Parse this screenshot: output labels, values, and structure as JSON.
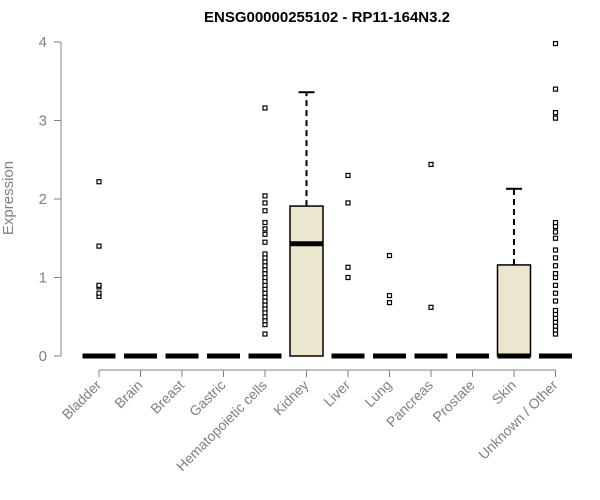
{
  "chart_data": {
    "type": "box",
    "title": "ENSG00000255102 - RP11-164N3.2",
    "xlabel": "",
    "ylabel": "Expression",
    "ylim": [
      0,
      4
    ],
    "yticks": [
      "0",
      "1",
      "2",
      "3",
      "4"
    ],
    "grid": false,
    "box_fill": "#ece6cc",
    "categories": [
      "Bladder",
      "Brain",
      "Breast",
      "Gastric",
      "Hematopoietic cells",
      "Kidney",
      "Liver",
      "Lung",
      "Pancreas",
      "Prostate",
      "Skin",
      "Unknown / Other"
    ],
    "boxes": [
      {
        "min": 0,
        "q1": 0,
        "median": 0,
        "q3": 0,
        "max": 0,
        "outliers": [
          0.76,
          0.8,
          0.88,
          0.9,
          1.4,
          2.22
        ]
      },
      {
        "min": 0,
        "q1": 0,
        "median": 0,
        "q3": 0,
        "max": 0,
        "outliers": []
      },
      {
        "min": 0,
        "q1": 0,
        "median": 0,
        "q3": 0,
        "max": 0,
        "outliers": []
      },
      {
        "min": 0,
        "q1": 0,
        "median": 0,
        "q3": 0,
        "max": 0,
        "outliers": []
      },
      {
        "min": 0,
        "q1": 0,
        "median": 0,
        "q3": 0,
        "max": 0,
        "outliers": [
          0.28,
          0.4,
          0.45,
          0.5,
          0.55,
          0.6,
          0.65,
          0.7,
          0.75,
          0.8,
          0.85,
          0.9,
          0.95,
          1.0,
          1.05,
          1.1,
          1.15,
          1.2,
          1.25,
          1.3,
          1.45,
          1.55,
          1.62,
          1.7,
          1.85,
          1.95,
          2.04,
          3.16
        ]
      },
      {
        "min": 0,
        "q1": 0,
        "median": 1.43,
        "q3": 1.91,
        "max": 3.36,
        "outliers": []
      },
      {
        "min": 0,
        "q1": 0,
        "median": 0,
        "q3": 0,
        "max": 0,
        "outliers": [
          1.0,
          1.13,
          1.95,
          2.3
        ]
      },
      {
        "min": 0,
        "q1": 0,
        "median": 0,
        "q3": 0,
        "max": 0,
        "outliers": [
          0.68,
          0.77,
          1.28
        ]
      },
      {
        "min": 0,
        "q1": 0,
        "median": 0,
        "q3": 0,
        "max": 0,
        "outliers": [
          0.62,
          2.44
        ]
      },
      {
        "min": 0,
        "q1": 0,
        "median": 0,
        "q3": 0,
        "max": 0,
        "outliers": []
      },
      {
        "min": 0,
        "q1": 0,
        "median": 0,
        "q3": 1.16,
        "max": 2.13,
        "outliers": []
      },
      {
        "min": 0,
        "q1": 0,
        "median": 0,
        "q3": 0,
        "max": 0,
        "outliers": [
          0.28,
          0.33,
          0.38,
          0.43,
          0.48,
          0.53,
          0.58,
          0.7,
          0.8,
          0.9,
          1.0,
          1.05,
          1.15,
          1.25,
          1.35,
          1.5,
          1.58,
          1.65,
          1.7,
          3.03,
          3.1,
          3.4,
          3.98
        ]
      }
    ]
  }
}
